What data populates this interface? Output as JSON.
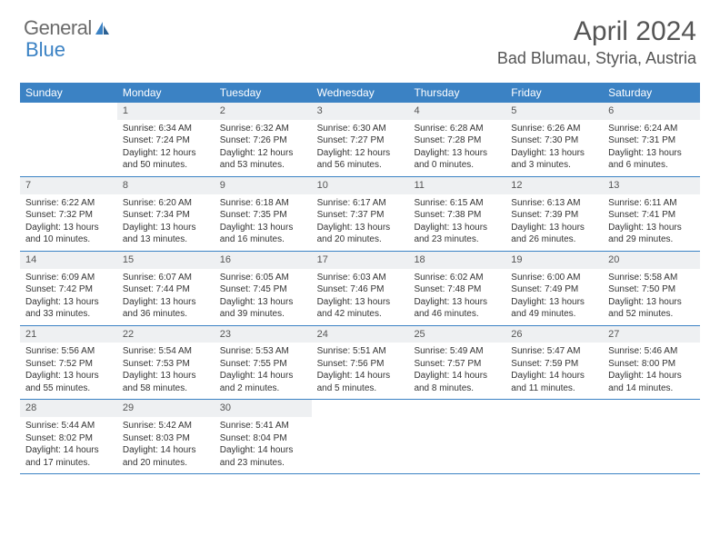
{
  "logo": {
    "text1": "General",
    "text2": "Blue"
  },
  "title": "April 2024",
  "location": "Bad Blumau, Styria, Austria",
  "colors": {
    "header_bar": "#3b82c4",
    "daynum_bg": "#eef0f2",
    "text": "#333333",
    "title_text": "#555555"
  },
  "day_names": [
    "Sunday",
    "Monday",
    "Tuesday",
    "Wednesday",
    "Thursday",
    "Friday",
    "Saturday"
  ],
  "weeks": [
    [
      {
        "n": "",
        "sr": "",
        "ss": "",
        "dl": ""
      },
      {
        "n": "1",
        "sr": "Sunrise: 6:34 AM",
        "ss": "Sunset: 7:24 PM",
        "dl": "Daylight: 12 hours and 50 minutes."
      },
      {
        "n": "2",
        "sr": "Sunrise: 6:32 AM",
        "ss": "Sunset: 7:26 PM",
        "dl": "Daylight: 12 hours and 53 minutes."
      },
      {
        "n": "3",
        "sr": "Sunrise: 6:30 AM",
        "ss": "Sunset: 7:27 PM",
        "dl": "Daylight: 12 hours and 56 minutes."
      },
      {
        "n": "4",
        "sr": "Sunrise: 6:28 AM",
        "ss": "Sunset: 7:28 PM",
        "dl": "Daylight: 13 hours and 0 minutes."
      },
      {
        "n": "5",
        "sr": "Sunrise: 6:26 AM",
        "ss": "Sunset: 7:30 PM",
        "dl": "Daylight: 13 hours and 3 minutes."
      },
      {
        "n": "6",
        "sr": "Sunrise: 6:24 AM",
        "ss": "Sunset: 7:31 PM",
        "dl": "Daylight: 13 hours and 6 minutes."
      }
    ],
    [
      {
        "n": "7",
        "sr": "Sunrise: 6:22 AM",
        "ss": "Sunset: 7:32 PM",
        "dl": "Daylight: 13 hours and 10 minutes."
      },
      {
        "n": "8",
        "sr": "Sunrise: 6:20 AM",
        "ss": "Sunset: 7:34 PM",
        "dl": "Daylight: 13 hours and 13 minutes."
      },
      {
        "n": "9",
        "sr": "Sunrise: 6:18 AM",
        "ss": "Sunset: 7:35 PM",
        "dl": "Daylight: 13 hours and 16 minutes."
      },
      {
        "n": "10",
        "sr": "Sunrise: 6:17 AM",
        "ss": "Sunset: 7:37 PM",
        "dl": "Daylight: 13 hours and 20 minutes."
      },
      {
        "n": "11",
        "sr": "Sunrise: 6:15 AM",
        "ss": "Sunset: 7:38 PM",
        "dl": "Daylight: 13 hours and 23 minutes."
      },
      {
        "n": "12",
        "sr": "Sunrise: 6:13 AM",
        "ss": "Sunset: 7:39 PM",
        "dl": "Daylight: 13 hours and 26 minutes."
      },
      {
        "n": "13",
        "sr": "Sunrise: 6:11 AM",
        "ss": "Sunset: 7:41 PM",
        "dl": "Daylight: 13 hours and 29 minutes."
      }
    ],
    [
      {
        "n": "14",
        "sr": "Sunrise: 6:09 AM",
        "ss": "Sunset: 7:42 PM",
        "dl": "Daylight: 13 hours and 33 minutes."
      },
      {
        "n": "15",
        "sr": "Sunrise: 6:07 AM",
        "ss": "Sunset: 7:44 PM",
        "dl": "Daylight: 13 hours and 36 minutes."
      },
      {
        "n": "16",
        "sr": "Sunrise: 6:05 AM",
        "ss": "Sunset: 7:45 PM",
        "dl": "Daylight: 13 hours and 39 minutes."
      },
      {
        "n": "17",
        "sr": "Sunrise: 6:03 AM",
        "ss": "Sunset: 7:46 PM",
        "dl": "Daylight: 13 hours and 42 minutes."
      },
      {
        "n": "18",
        "sr": "Sunrise: 6:02 AM",
        "ss": "Sunset: 7:48 PM",
        "dl": "Daylight: 13 hours and 46 minutes."
      },
      {
        "n": "19",
        "sr": "Sunrise: 6:00 AM",
        "ss": "Sunset: 7:49 PM",
        "dl": "Daylight: 13 hours and 49 minutes."
      },
      {
        "n": "20",
        "sr": "Sunrise: 5:58 AM",
        "ss": "Sunset: 7:50 PM",
        "dl": "Daylight: 13 hours and 52 minutes."
      }
    ],
    [
      {
        "n": "21",
        "sr": "Sunrise: 5:56 AM",
        "ss": "Sunset: 7:52 PM",
        "dl": "Daylight: 13 hours and 55 minutes."
      },
      {
        "n": "22",
        "sr": "Sunrise: 5:54 AM",
        "ss": "Sunset: 7:53 PM",
        "dl": "Daylight: 13 hours and 58 minutes."
      },
      {
        "n": "23",
        "sr": "Sunrise: 5:53 AM",
        "ss": "Sunset: 7:55 PM",
        "dl": "Daylight: 14 hours and 2 minutes."
      },
      {
        "n": "24",
        "sr": "Sunrise: 5:51 AM",
        "ss": "Sunset: 7:56 PM",
        "dl": "Daylight: 14 hours and 5 minutes."
      },
      {
        "n": "25",
        "sr": "Sunrise: 5:49 AM",
        "ss": "Sunset: 7:57 PM",
        "dl": "Daylight: 14 hours and 8 minutes."
      },
      {
        "n": "26",
        "sr": "Sunrise: 5:47 AM",
        "ss": "Sunset: 7:59 PM",
        "dl": "Daylight: 14 hours and 11 minutes."
      },
      {
        "n": "27",
        "sr": "Sunrise: 5:46 AM",
        "ss": "Sunset: 8:00 PM",
        "dl": "Daylight: 14 hours and 14 minutes."
      }
    ],
    [
      {
        "n": "28",
        "sr": "Sunrise: 5:44 AM",
        "ss": "Sunset: 8:02 PM",
        "dl": "Daylight: 14 hours and 17 minutes."
      },
      {
        "n": "29",
        "sr": "Sunrise: 5:42 AM",
        "ss": "Sunset: 8:03 PM",
        "dl": "Daylight: 14 hours and 20 minutes."
      },
      {
        "n": "30",
        "sr": "Sunrise: 5:41 AM",
        "ss": "Sunset: 8:04 PM",
        "dl": "Daylight: 14 hours and 23 minutes."
      },
      {
        "n": "",
        "sr": "",
        "ss": "",
        "dl": ""
      },
      {
        "n": "",
        "sr": "",
        "ss": "",
        "dl": ""
      },
      {
        "n": "",
        "sr": "",
        "ss": "",
        "dl": ""
      },
      {
        "n": "",
        "sr": "",
        "ss": "",
        "dl": ""
      }
    ]
  ]
}
